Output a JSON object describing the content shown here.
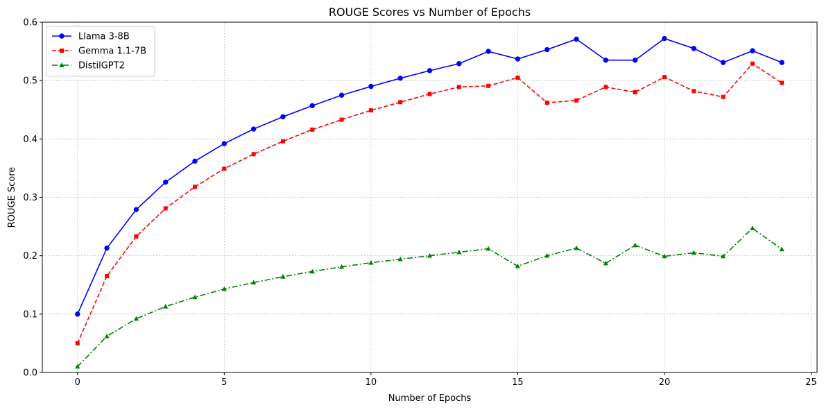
{
  "chart_data": {
    "type": "line",
    "title": "ROUGE Scores vs Number of Epochs",
    "xlabel": "Number of Epochs",
    "ylabel": "ROUGE Score",
    "xlim": [
      -1.2,
      25.2
    ],
    "ylim": [
      0,
      0.6
    ],
    "xticks": [
      0,
      5,
      10,
      15,
      20,
      25
    ],
    "yticks": [
      0.0,
      0.1,
      0.2,
      0.3,
      0.4,
      0.5,
      0.6
    ],
    "xtick_labels": [
      "0",
      "5",
      "10",
      "15",
      "20",
      "25"
    ],
    "ytick_labels": [
      "0.0",
      "0.1",
      "0.2",
      "0.3",
      "0.4",
      "0.5",
      "0.6"
    ],
    "grid": true,
    "legend_position": "top-left",
    "x": [
      0,
      1,
      2,
      3,
      4,
      5,
      6,
      7,
      8,
      9,
      10,
      11,
      12,
      13,
      14,
      15,
      16,
      17,
      18,
      19,
      20,
      21,
      22,
      23,
      24
    ],
    "series": [
      {
        "name": "Llama 3-8B",
        "color": "#0000ff",
        "linestyle": "solid",
        "marker": "circle",
        "values": [
          0.1,
          0.213,
          0.279,
          0.326,
          0.362,
          0.392,
          0.417,
          0.438,
          0.457,
          0.475,
          0.49,
          0.504,
          0.517,
          0.529,
          0.55,
          0.537,
          0.553,
          0.571,
          0.535,
          0.535,
          0.572,
          0.555,
          0.531,
          0.551,
          0.531
        ]
      },
      {
        "name": "Gemma 1.1-7B",
        "color": "#ff0000",
        "linestyle": "dashed",
        "marker": "square",
        "values": [
          0.05,
          0.165,
          0.233,
          0.281,
          0.318,
          0.349,
          0.374,
          0.396,
          0.416,
          0.433,
          0.449,
          0.463,
          0.477,
          0.489,
          0.491,
          0.505,
          0.462,
          0.466,
          0.489,
          0.48,
          0.506,
          0.482,
          0.472,
          0.529,
          0.496
        ]
      },
      {
        "name": "DistilGPT2",
        "color": "#008000",
        "linestyle": "dashdot",
        "marker": "triangle",
        "values": [
          0.01,
          0.062,
          0.092,
          0.113,
          0.129,
          0.143,
          0.154,
          0.164,
          0.173,
          0.181,
          0.188,
          0.194,
          0.2,
          0.206,
          0.212,
          0.182,
          0.2,
          0.213,
          0.187,
          0.218,
          0.199,
          0.205,
          0.199,
          0.247,
          0.211
        ]
      }
    ]
  }
}
